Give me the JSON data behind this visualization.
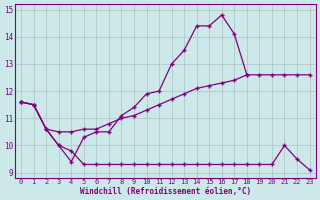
{
  "xlabel": "Windchill (Refroidissement éolien,°C)",
  "background_color": "#cce8e8",
  "line_color": "#800080",
  "grid_color": "#b0c8c8",
  "xlim": [
    -0.5,
    23.5
  ],
  "ylim": [
    8.8,
    15.2
  ],
  "yticks": [
    9,
    10,
    11,
    12,
    13,
    14,
    15
  ],
  "xticks": [
    0,
    1,
    2,
    3,
    4,
    5,
    6,
    7,
    8,
    9,
    10,
    11,
    12,
    13,
    14,
    15,
    16,
    17,
    18,
    19,
    20,
    21,
    22,
    23
  ],
  "line1_x": [
    0,
    1,
    2,
    3,
    4,
    5,
    6,
    7,
    8,
    9,
    10,
    11,
    12,
    13,
    14,
    15,
    16,
    17,
    18,
    19,
    20,
    21,
    22,
    23
  ],
  "line1_y": [
    11.6,
    11.5,
    10.6,
    10.5,
    10.5,
    10.6,
    10.6,
    10.8,
    11.0,
    11.1,
    11.3,
    11.5,
    11.7,
    11.9,
    12.1,
    12.2,
    12.3,
    12.4,
    12.6,
    12.6,
    12.6,
    12.6,
    12.6,
    12.6
  ],
  "line2_x": [
    0,
    1,
    2,
    3,
    4,
    5,
    6,
    7,
    8,
    9,
    10,
    11,
    12,
    13,
    14,
    15,
    16,
    17,
    18
  ],
  "line2_y": [
    11.6,
    11.5,
    10.6,
    10.0,
    9.4,
    10.3,
    10.5,
    10.5,
    11.1,
    11.4,
    11.9,
    12.0,
    13.0,
    13.5,
    14.4,
    14.4,
    14.8,
    14.1,
    12.6
  ],
  "line3_x": [
    0,
    1,
    2,
    3,
    4,
    5,
    6,
    7,
    8,
    9,
    10,
    11,
    12,
    13,
    14,
    15,
    16,
    17,
    18,
    19,
    20,
    21,
    22,
    23
  ],
  "line3_y": [
    11.6,
    11.5,
    10.6,
    10.0,
    9.8,
    9.3,
    9.3,
    9.3,
    9.3,
    9.3,
    9.3,
    9.3,
    9.3,
    9.3,
    9.3,
    9.3,
    9.3,
    9.3,
    9.3,
    9.3,
    9.3,
    10.0,
    9.5,
    9.1
  ]
}
